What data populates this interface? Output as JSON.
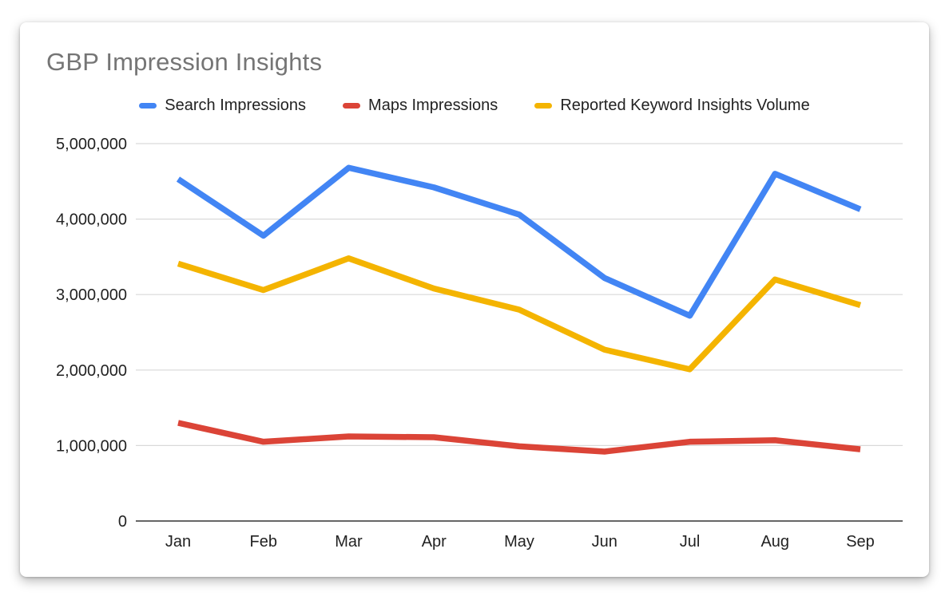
{
  "title": "GBP Impression Insights",
  "chart_data": {
    "type": "line",
    "title": "GBP Impression Insights",
    "categories": [
      "Jan",
      "Feb",
      "Mar",
      "Apr",
      "May",
      "Jun",
      "Jul",
      "Aug",
      "Sep"
    ],
    "series": [
      {
        "name": "Search Impressions",
        "color": "#4285f4",
        "values": [
          4530000,
          3780000,
          4680000,
          4420000,
          4060000,
          3220000,
          2720000,
          4600000,
          4130000
        ]
      },
      {
        "name": "Maps Impressions",
        "color": "#db4437",
        "values": [
          1300000,
          1050000,
          1120000,
          1110000,
          990000,
          920000,
          1050000,
          1070000,
          950000
        ]
      },
      {
        "name": "Reported Keyword Insights Volume",
        "color": "#f4b400",
        "values": [
          3410000,
          3060000,
          3480000,
          3080000,
          2800000,
          2270000,
          2010000,
          3200000,
          2860000
        ]
      }
    ],
    "xlabel": "",
    "ylabel": "",
    "ylim": [
      0,
      5000000
    ],
    "y_ticks": [
      {
        "value": 0,
        "label": "0"
      },
      {
        "value": 1000000,
        "label": "1,000,000"
      },
      {
        "value": 2000000,
        "label": "2,000,000"
      },
      {
        "value": 3000000,
        "label": "3,000,000"
      },
      {
        "value": 4000000,
        "label": "4,000,000"
      },
      {
        "value": 5000000,
        "label": "5,000,000"
      }
    ],
    "grid": true,
    "legend_position": "top"
  },
  "colors": {
    "series_blue": "#4285f4",
    "series_red": "#db4437",
    "series_yellow": "#f4b400",
    "title_text": "#757575",
    "axis_text": "#222222",
    "gridline": "#d9d9d9",
    "zero_axis_line": "#333333",
    "card_background": "#ffffff"
  }
}
